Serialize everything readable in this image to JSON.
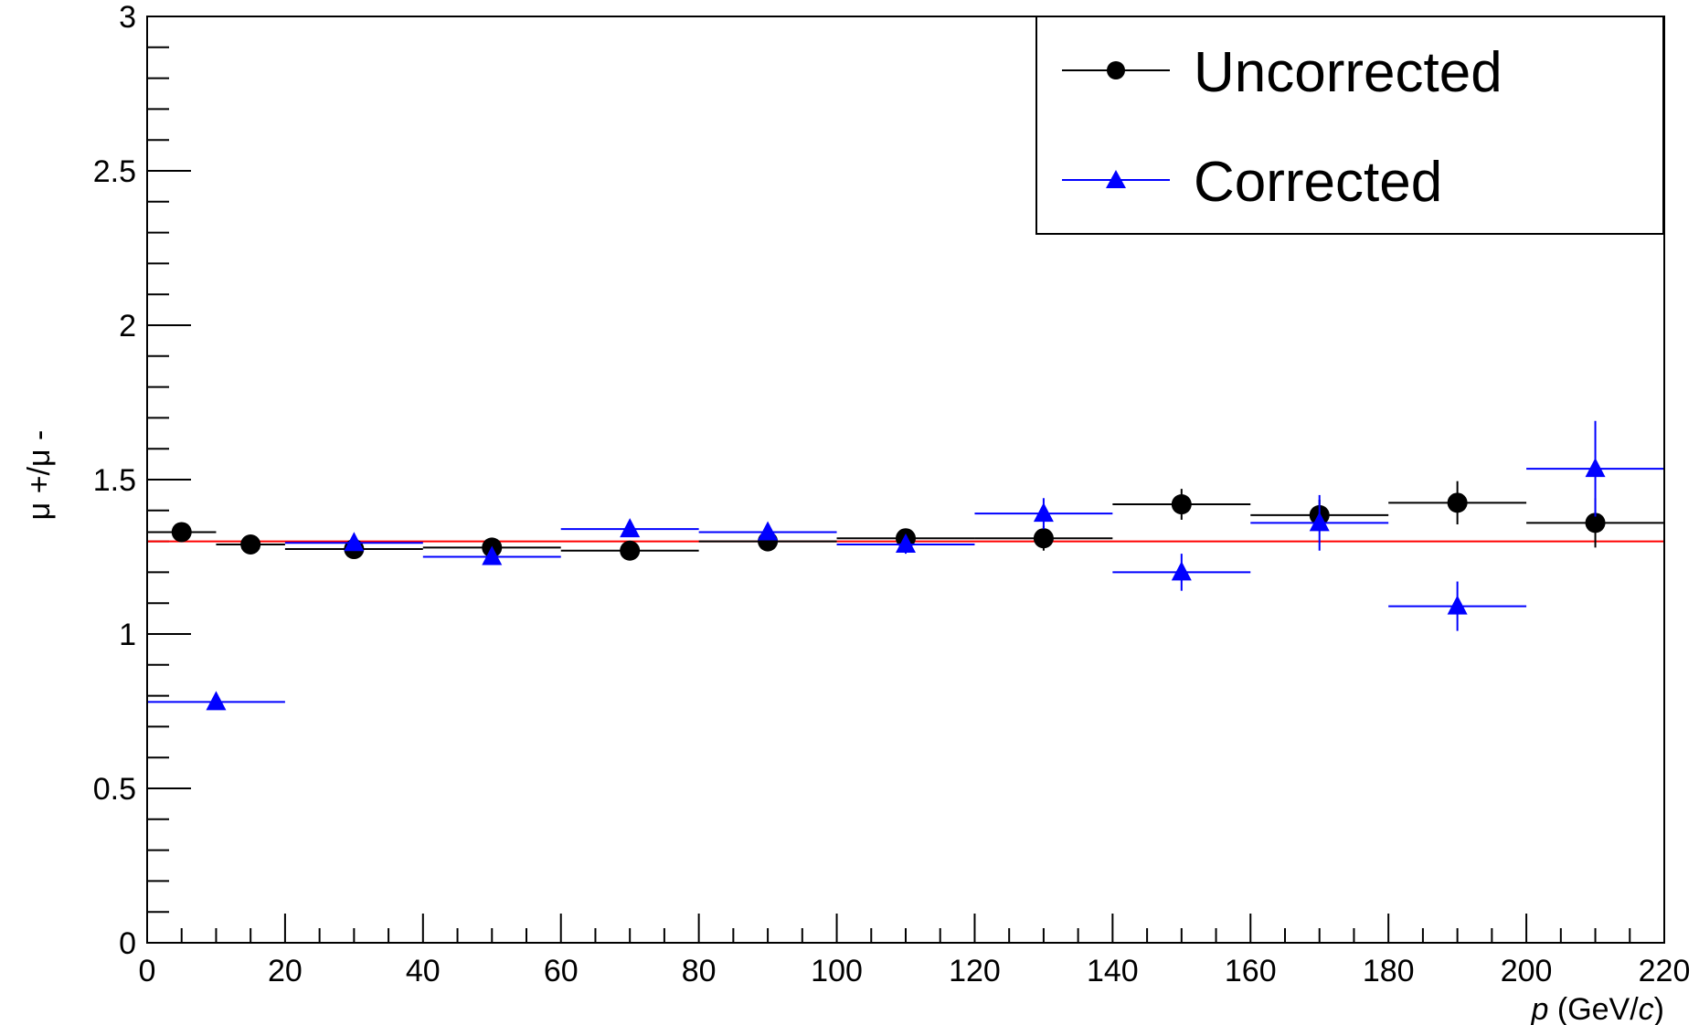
{
  "chart_data": {
    "type": "scatter",
    "xlabel": "p (GeV/c)",
    "ylabel": "μ +/μ -",
    "xlim": [
      0,
      220
    ],
    "ylim": [
      0,
      3
    ],
    "x_ticks": [
      0,
      20,
      40,
      60,
      80,
      100,
      120,
      140,
      160,
      180,
      200,
      220
    ],
    "y_ticks": [
      0,
      0.5,
      1,
      1.5,
      2,
      2.5,
      3
    ],
    "legend_position": "top-right",
    "grid": false,
    "reference_line": {
      "y": 1.3,
      "color": "#ff0000"
    },
    "series": [
      {
        "name": "Uncorrected",
        "marker": "circle",
        "color": "#000000",
        "points": [
          {
            "x": 5,
            "xlow": 0,
            "xhigh": 10,
            "y": 1.33,
            "yerr": 0.01
          },
          {
            "x": 15,
            "xlow": 10,
            "xhigh": 20,
            "y": 1.29,
            "yerr": 0.01
          },
          {
            "x": 30,
            "xlow": 20,
            "xhigh": 40,
            "y": 1.275,
            "yerr": 0.01
          },
          {
            "x": 50,
            "xlow": 40,
            "xhigh": 60,
            "y": 1.28,
            "yerr": 0.015
          },
          {
            "x": 70,
            "xlow": 60,
            "xhigh": 80,
            "y": 1.27,
            "yerr": 0.015
          },
          {
            "x": 90,
            "xlow": 80,
            "xhigh": 100,
            "y": 1.3,
            "yerr": 0.02
          },
          {
            "x": 110,
            "xlow": 100,
            "xhigh": 120,
            "y": 1.31,
            "yerr": 0.025
          },
          {
            "x": 130,
            "xlow": 120,
            "xhigh": 140,
            "y": 1.31,
            "yerr": 0.04
          },
          {
            "x": 150,
            "xlow": 140,
            "xhigh": 160,
            "y": 1.42,
            "yerr": 0.05
          },
          {
            "x": 170,
            "xlow": 160,
            "xhigh": 180,
            "y": 1.385,
            "yerr": 0.05
          },
          {
            "x": 190,
            "xlow": 180,
            "xhigh": 200,
            "y": 1.425,
            "yerr": 0.07
          },
          {
            "x": 210,
            "xlow": 200,
            "xhigh": 220,
            "y": 1.36,
            "yerr": 0.08
          }
        ]
      },
      {
        "name": "Corrected",
        "marker": "triangle",
        "color": "#0000ff",
        "points": [
          {
            "x": 10,
            "xlow": 0,
            "xhigh": 20,
            "y": 0.78,
            "yerr": 0.01
          },
          {
            "x": 30,
            "xlow": 20,
            "xhigh": 40,
            "y": 1.295,
            "yerr": 0.01
          },
          {
            "x": 50,
            "xlow": 40,
            "xhigh": 60,
            "y": 1.25,
            "yerr": 0.015
          },
          {
            "x": 70,
            "xlow": 60,
            "xhigh": 80,
            "y": 1.34,
            "yerr": 0.015
          },
          {
            "x": 90,
            "xlow": 80,
            "xhigh": 100,
            "y": 1.33,
            "yerr": 0.02
          },
          {
            "x": 110,
            "xlow": 100,
            "xhigh": 120,
            "y": 1.29,
            "yerr": 0.03
          },
          {
            "x": 130,
            "xlow": 120,
            "xhigh": 140,
            "y": 1.39,
            "yerr": 0.05
          },
          {
            "x": 150,
            "xlow": 140,
            "xhigh": 160,
            "y": 1.2,
            "yerr": 0.06
          },
          {
            "x": 170,
            "xlow": 160,
            "xhigh": 180,
            "y": 1.36,
            "yerr": 0.09
          },
          {
            "x": 190,
            "xlow": 180,
            "xhigh": 200,
            "y": 1.09,
            "yerr": 0.08
          },
          {
            "x": 210,
            "xlow": 200,
            "xhigh": 220,
            "y": 1.535,
            "yerr": 0.155
          }
        ]
      }
    ]
  }
}
